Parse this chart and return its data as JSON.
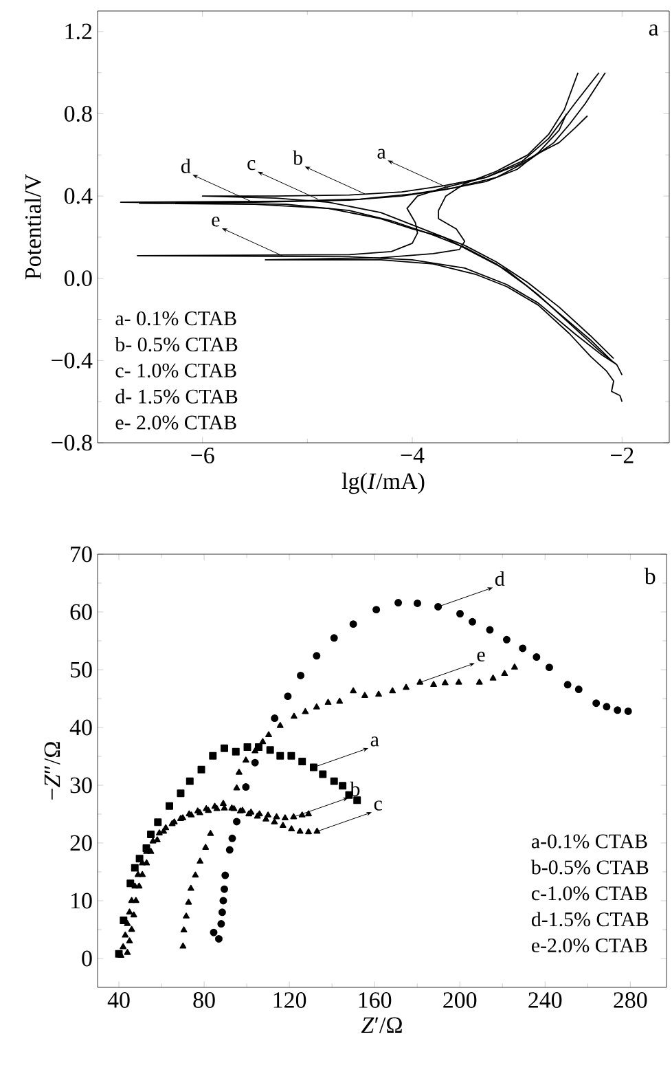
{
  "chart_data": [
    {
      "type": "line",
      "title": "a",
      "xlabel": "lg(*I*/mA)",
      "ylabel": "Potential/V",
      "xlim": [
        -7,
        -1.55
      ],
      "ylim": [
        -0.8,
        1.3
      ],
      "xticks": [
        {
          "value": -6,
          "label": "−6"
        },
        {
          "value": -4,
          "label": "−4"
        },
        {
          "value": -2,
          "label": "−2"
        }
      ],
      "yticks": [
        {
          "value": -0.8,
          "label": "−0.8"
        },
        {
          "value": -0.4,
          "label": "−0.4"
        },
        {
          "value": 0,
          "label": "0.0"
        },
        0.4,
        0.8,
        1.2
      ],
      "series": [
        {
          "color": "#000000",
          "line_style": "solid",
          "x": [
            -2.0,
            -2.02,
            -2.1,
            -2.08,
            -2.15,
            -2.3,
            -2.5,
            -2.8,
            -3.1,
            -3.4,
            -3.8,
            -4.3,
            -5.4,
            -4.3,
            -3.8,
            -3.55,
            -3.5,
            -3.58,
            -3.75,
            -3.75,
            -3.68,
            -3.5,
            -3.2,
            -2.9,
            -2.7,
            -2.55,
            -2.42
          ],
          "values": [
            -0.6,
            -0.57,
            -0.55,
            -0.5,
            -0.45,
            -0.38,
            -0.27,
            -0.13,
            -0.04,
            0.02,
            0.07,
            0.09,
            0.09,
            0.1,
            0.12,
            0.14,
            0.18,
            0.24,
            0.29,
            0.33,
            0.4,
            0.46,
            0.52,
            0.6,
            0.7,
            0.82,
            1.0
          ]
        },
        {
          "color": "#000000",
          "line_style": "solid",
          "x": [
            -2.08,
            -2.3,
            -2.6,
            -2.9,
            -3.2,
            -3.5,
            -3.9,
            -4.3,
            -4.8,
            -5.3,
            -6.0,
            -5.3,
            -4.6,
            -4.1,
            -3.7,
            -3.3,
            -2.95,
            -2.7,
            -2.45,
            -2.22
          ],
          "values": [
            -0.39,
            -0.28,
            -0.14,
            -0.02,
            0.08,
            0.16,
            0.24,
            0.32,
            0.37,
            0.39,
            0.4,
            0.4,
            0.405,
            0.42,
            0.45,
            0.49,
            0.57,
            0.68,
            0.85,
            1.0
          ]
        },
        {
          "color": "#000000",
          "line_style": "solid",
          "x": [
            -2.0,
            -2.05,
            -2.2,
            -2.5,
            -2.8,
            -3.1,
            -3.4,
            -3.7,
            -4.0,
            -4.3,
            -4.8,
            -5.5,
            -6.6,
            -5.5,
            -4.6,
            -4.1,
            -3.7,
            -3.3,
            -3.0,
            -2.8,
            -2.6,
            -2.53
          ],
          "values": [
            -0.47,
            -0.42,
            -0.36,
            -0.22,
            -0.08,
            0.04,
            0.12,
            0.2,
            0.24,
            0.29,
            0.34,
            0.36,
            0.365,
            0.37,
            0.38,
            0.4,
            0.43,
            0.47,
            0.53,
            0.61,
            0.72,
            0.8
          ]
        },
        {
          "color": "#000000",
          "line_style": "solid",
          "x": [
            -2.1,
            -2.3,
            -2.6,
            -2.9,
            -3.2,
            -3.5,
            -3.8,
            -4.2,
            -4.6,
            -5.2,
            -6.78,
            -5.2,
            -4.5,
            -4.0,
            -3.6,
            -3.2,
            -2.9,
            -2.65,
            -2.5,
            -2.35,
            -2.16
          ],
          "values": [
            -0.4,
            -0.3,
            -0.17,
            -0.04,
            0.07,
            0.15,
            0.21,
            0.28,
            0.33,
            0.36,
            0.37,
            0.375,
            0.385,
            0.41,
            0.44,
            0.49,
            0.57,
            0.66,
            0.75,
            0.85,
            1.0
          ]
        },
        {
          "color": "#000000",
          "line_style": "solid",
          "x": [
            -2.05,
            -2.2,
            -2.45,
            -2.8,
            -3.1,
            -3.5,
            -4.0,
            -4.6,
            -6.62,
            -4.6,
            -4.2,
            -4.0,
            -3.95,
            -3.97,
            -4.05,
            -3.95,
            -3.7,
            -3.3,
            -3.0,
            -2.75,
            -2.6,
            -2.45,
            -2.33
          ],
          "values": [
            -0.42,
            -0.37,
            -0.27,
            -0.12,
            -0.03,
            0.05,
            0.09,
            0.105,
            0.11,
            0.115,
            0.13,
            0.17,
            0.22,
            0.27,
            0.34,
            0.4,
            0.44,
            0.49,
            0.55,
            0.62,
            0.66,
            0.73,
            0.79
          ]
        }
      ],
      "annotations": [
        {
          "text": "a",
          "x": -3.66,
          "y": 0.44
        },
        {
          "text": "b",
          "x": -4.45,
          "y": 0.41
        },
        {
          "text": "c",
          "x": -4.9,
          "y": 0.385
        },
        {
          "text": "d",
          "x": -5.52,
          "y": 0.37
        },
        {
          "text": "e",
          "x": -5.24,
          "y": 0.11
        },
        "a- 0.1% CTAB",
        "b- 0.5% CTAB",
        "c- 1.0% CTAB",
        "d- 1.5% CTAB",
        "e- 2.0% CTAB"
      ]
    },
    {
      "type": "scatter",
      "title": "b",
      "xlabel": "*Z*′/Ω",
      "ylabel": "−*Z*″/Ω",
      "xlim": [
        30,
        297
      ],
      "ylim": [
        -5,
        70
      ],
      "xticks": [
        40,
        80,
        120,
        160,
        200,
        240,
        280
      ],
      "yticks": [
        0,
        10,
        20,
        30,
        40,
        50,
        60,
        70
      ],
      "series": [
        {
          "color": "#000000",
          "marker": "square",
          "x": [
            40,
            42.2,
            45.4,
            47.5,
            49.7,
            52.9,
            55,
            58.3,
            63.7,
            69,
            73.3,
            78.7,
            84.1,
            89.5,
            94.9,
            100.3,
            105.6,
            111,
            115.7,
            120.9,
            126,
            131.4,
            135.7,
            141,
            145,
            148,
            151.8
          ],
          "values": [
            0.8,
            6.6,
            13,
            15.7,
            17.3,
            19.1,
            21.5,
            23.6,
            26.4,
            28.6,
            30.7,
            32.7,
            35.1,
            36.4,
            35.8,
            36.6,
            36.6,
            36.1,
            35.1,
            35.1,
            34.1,
            33.1,
            31.9,
            30.7,
            29.9,
            28.3,
            27.4
          ]
        },
        {
          "color": "#000000",
          "marker": "triangle",
          "x": [
            41,
            42,
            43,
            44,
            45,
            46,
            47.5,
            49,
            51,
            53,
            56,
            59,
            62,
            66,
            70,
            74,
            78,
            82,
            86,
            90,
            94,
            98,
            102,
            106,
            110,
            114,
            118,
            122,
            126,
            129
          ],
          "values": [
            0.5,
            2,
            4,
            6,
            8,
            10,
            12.5,
            14.5,
            16.5,
            18.5,
            20.3,
            21.7,
            22.6,
            23.6,
            24.3,
            24.8,
            25.2,
            25.6,
            25.9,
            null,
            25.9,
            25.6,
            25.3,
            25,
            24.8,
            24.5,
            24.3,
            24.5,
            24.8,
            25
          ]
        },
        {
          "color": "#000000",
          "marker": "triangle",
          "x": [
            44,
            45,
            46,
            47,
            48,
            49.5,
            51,
            53,
            55,
            58,
            61,
            65,
            69,
            73,
            77,
            81,
            85,
            89,
            93,
            97,
            101,
            105,
            109,
            113,
            117,
            121,
            125,
            129,
            133
          ],
          "values": [
            1,
            3,
            5,
            7.5,
            10,
            12.5,
            14.5,
            16.5,
            18.5,
            20.5,
            22,
            23.3,
            24.2,
            25,
            25.5,
            25.9,
            26.3,
            26.8,
            26,
            25.5,
            25,
            24.6,
            24.1,
            23.6,
            23,
            22.4,
            22,
            21.9,
            22
          ]
        },
        {
          "color": "#000000",
          "marker": "circle",
          "x": [
            84.5,
            86.9,
            88,
            88.5,
            89,
            89.5,
            89.9,
            92,
            93.2,
            95.3,
            99.6,
            103.9,
            113.1,
            119.3,
            125.3,
            132.8,
            141,
            150,
            160.8,
            171.1,
            180.1,
            189.8,
            200.1,
            205.9,
            214.1,
            222,
            229.5,
            236,
            242,
            250.6,
            255.8,
            264,
            268.9,
            274,
            279
          ],
          "values": [
            4.5,
            3.4,
            6,
            8,
            10,
            12,
            14.4,
            18.8,
            20.8,
            23.7,
            29.7,
            33.9,
            41.6,
            45.4,
            49,
            52.4,
            55.5,
            57.9,
            60.4,
            61.6,
            61.5,
            60.9,
            59.7,
            58.3,
            56.9,
            55.2,
            53.7,
            52.2,
            50.4,
            47.4,
            46.6,
            44.2,
            43.6,
            43,
            42.8
          ]
        },
        {
          "color": "#000000",
          "marker": "triangle",
          "x": [
            70.1,
            70.5,
            71.6,
            72.7,
            73.8,
            75.9,
            78.1,
            80.7,
            83,
            89.5,
            95.3,
            96.4,
            99.6,
            103.9,
            107.5,
            110.3,
            115.7,
            122.2,
            127.5,
            132.8,
            138.2,
            143.6,
            150,
            155.4,
            161.9,
            168.4,
            174.8,
            181.3,
            187.7,
            193.1,
            199.5,
            209.2,
            215.6,
            221,
            225.7
          ],
          "values": [
            2.1,
            4.9,
            7.3,
            9.7,
            12.1,
            14.4,
            16.8,
            19.2,
            21.6,
            26,
            29.5,
            32.2,
            34.3,
            35.9,
            37.5,
            38.7,
            40.3,
            41.9,
            42.7,
            43.5,
            44.3,
            44.5,
            46.3,
            45.5,
            45.7,
            46.3,
            46.9,
            47.8,
            47.4,
            47.7,
            47.8,
            47.8,
            48.5,
            49.3,
            50.4
          ]
        }
      ],
      "annotations": [
        {
          "text": "a",
          "x": 131.4,
          "y": 33.1
        },
        {
          "text": "b",
          "x": 122,
          "y": 24.5
        },
        {
          "text": "c",
          "x": 133,
          "y": 22
        },
        {
          "text": "d",
          "x": 189.8,
          "y": 60.9
        },
        {
          "text": "e",
          "x": 181.3,
          "y": 47.8
        },
        "a-0.1% CTAB",
        "b-0.5% CTAB",
        "c-1.0% CTAB",
        "d-1.5% CTAB",
        "e-2.0% CTAB"
      ]
    }
  ]
}
